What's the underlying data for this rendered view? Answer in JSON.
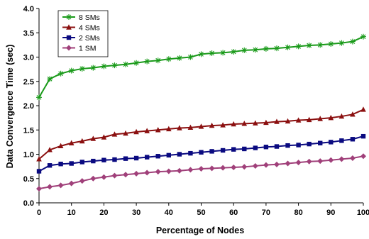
{
  "chart_data": {
    "type": "line",
    "title": "",
    "xlabel": "Percentage of Nodes",
    "ylabel": "Data Convergence Time (sec)",
    "xlim": [
      0,
      100
    ],
    "ylim": [
      0,
      4
    ],
    "xticks": [
      0,
      10,
      20,
      30,
      40,
      50,
      60,
      70,
      80,
      90,
      100
    ],
    "yticks": [
      0.0,
      0.5,
      1.0,
      1.5,
      2.0,
      2.5,
      3.0,
      3.5,
      4.0
    ],
    "ytick_labels": [
      "0.0",
      "0.5",
      "1.0",
      "1.5",
      "2.0",
      "2.5",
      "3.0",
      "3.5",
      "4.0"
    ],
    "grid": false,
    "legend": "top-left",
    "x": [
      0,
      3.3,
      6.7,
      10,
      13.3,
      16.7,
      20,
      23.3,
      26.7,
      30,
      33.3,
      36.7,
      40,
      43.3,
      46.7,
      50,
      53.3,
      56.7,
      60,
      63.3,
      66.7,
      70,
      73.3,
      76.7,
      80,
      83.3,
      86.7,
      90,
      93.3,
      96.7,
      100
    ],
    "series": [
      {
        "name": "8 SMs",
        "color": "#1a9a1a",
        "marker": "star",
        "values": [
          2.17,
          2.55,
          2.66,
          2.72,
          2.76,
          2.78,
          2.81,
          2.83,
          2.85,
          2.88,
          2.91,
          2.93,
          2.96,
          2.98,
          3.0,
          3.06,
          3.08,
          3.09,
          3.11,
          3.14,
          3.15,
          3.17,
          3.18,
          3.2,
          3.22,
          3.24,
          3.25,
          3.27,
          3.29,
          3.32,
          3.42
        ]
      },
      {
        "name": "4 SMs",
        "color": "#8b1010",
        "marker": "triangle",
        "values": [
          0.9,
          1.09,
          1.17,
          1.23,
          1.27,
          1.32,
          1.35,
          1.41,
          1.43,
          1.46,
          1.48,
          1.5,
          1.52,
          1.54,
          1.55,
          1.57,
          1.59,
          1.6,
          1.62,
          1.63,
          1.64,
          1.65,
          1.67,
          1.68,
          1.7,
          1.71,
          1.73,
          1.75,
          1.78,
          1.82,
          1.92
        ]
      },
      {
        "name": "2 SMs",
        "color": "#0a0a80",
        "marker": "square",
        "values": [
          0.65,
          0.77,
          0.8,
          0.81,
          0.84,
          0.86,
          0.88,
          0.89,
          0.91,
          0.92,
          0.94,
          0.96,
          0.98,
          1.0,
          1.02,
          1.04,
          1.06,
          1.08,
          1.1,
          1.11,
          1.13,
          1.15,
          1.16,
          1.18,
          1.19,
          1.21,
          1.23,
          1.25,
          1.28,
          1.31,
          1.37
        ]
      },
      {
        "name": "1 SM",
        "color": "#a0407a",
        "marker": "diamond",
        "values": [
          0.29,
          0.33,
          0.36,
          0.4,
          0.45,
          0.5,
          0.53,
          0.56,
          0.58,
          0.6,
          0.62,
          0.64,
          0.65,
          0.66,
          0.68,
          0.7,
          0.71,
          0.72,
          0.73,
          0.74,
          0.76,
          0.78,
          0.79,
          0.81,
          0.83,
          0.85,
          0.86,
          0.88,
          0.9,
          0.92,
          0.96
        ]
      }
    ]
  }
}
